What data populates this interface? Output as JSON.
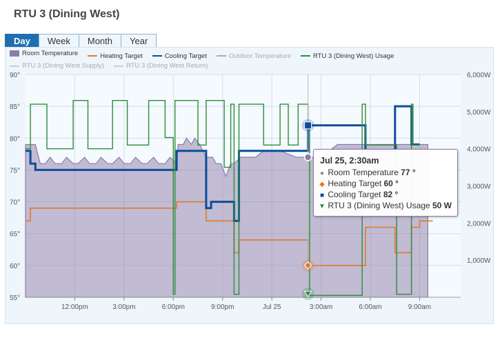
{
  "page": {
    "title": "RTU 3 (Dining West)"
  },
  "tabs": [
    "Day",
    "Week",
    "Month",
    "Year"
  ],
  "active_tab": "Day",
  "legend": [
    {
      "label": "Room Temperature",
      "kind": "area",
      "color": "#8e7ca8",
      "muted": false
    },
    {
      "label": "Heating Target",
      "kind": "line",
      "color": "#e07a2e",
      "muted": false
    },
    {
      "label": "Cooling Target",
      "kind": "line",
      "color": "#0d4c9a",
      "muted": false
    },
    {
      "label": "Outdoor Temperature",
      "kind": "line",
      "color": "#aaaaaa",
      "muted": true
    },
    {
      "label": "RTU 3 (Dining West) Usage",
      "kind": "line",
      "color": "#2e8b3a",
      "muted": false
    },
    {
      "label": "RTU 3 (Dining West Supply)",
      "kind": "line",
      "color": "#cccccc",
      "muted": true
    },
    {
      "label": "RTU 3 (Dining West Return)",
      "kind": "line",
      "color": "#cccccc",
      "muted": true
    }
  ],
  "tooltip": {
    "header": "Jul 25, 2:30am",
    "rows": [
      {
        "marker": "●",
        "color": "#8e7ca8",
        "label": "Room Temperature",
        "value": "77 °"
      },
      {
        "marker": "◆",
        "color": "#e07a2e",
        "label": "Heating Target",
        "value": "60 °"
      },
      {
        "marker": "■",
        "color": "#0d4c9a",
        "label": "Cooling Target",
        "value": "82 °"
      },
      {
        "marker": "▼",
        "color": "#2e8b3a",
        "label": "RTU 3 (Dining West) Usage",
        "value": "50 W"
      }
    ]
  },
  "chart_data": {
    "type": "line",
    "x_unit": "hours since Jul 24 9:00am",
    "x_ticks": [
      {
        "x": 3,
        "label": "12:00pm"
      },
      {
        "x": 6,
        "label": "3:00pm"
      },
      {
        "x": 9,
        "label": "6:00pm"
      },
      {
        "x": 12,
        "label": "9:00pm"
      },
      {
        "x": 15,
        "label": "Jul 25"
      },
      {
        "x": 18,
        "label": "3:00am"
      },
      {
        "x": 21,
        "label": "6:00am"
      },
      {
        "x": 24,
        "label": "9:00am"
      }
    ],
    "xlim": [
      0,
      26.5
    ],
    "y_left": {
      "range": [
        55,
        90
      ],
      "ticks": [
        55,
        60,
        65,
        70,
        75,
        80,
        85,
        90
      ],
      "suffix": "°"
    },
    "y_right": {
      "range": [
        0,
        6000
      ],
      "ticks": [
        0,
        1000,
        2000,
        3000,
        4000,
        5000,
        6000
      ],
      "labels": [
        "",
        "1,000W",
        "2,000W",
        "3,000W",
        "4,000W",
        "5,000W",
        "6,000W"
      ]
    },
    "grid": true,
    "series": [
      {
        "name": "Room Temperature",
        "axis": "left",
        "style": "area",
        "color": "#8e7ca8",
        "x": [
          0,
          0.6,
          0.9,
          1.2,
          1.5,
          1.8,
          2.2,
          2.5,
          2.9,
          3.2,
          3.6,
          3.9,
          4.3,
          4.6,
          5.0,
          5.3,
          5.7,
          6.0,
          6.4,
          6.7,
          7.1,
          7.4,
          7.8,
          8.1,
          8.5,
          8.8,
          9.2,
          9.3,
          9.6,
          9.8,
          10.1,
          10.3,
          10.6,
          11.0,
          11.4,
          11.6,
          11.9,
          12.2,
          12.5,
          12.7,
          13.1,
          13.6,
          14.0,
          14.5,
          15.0,
          15.5,
          16.5,
          17.2,
          17.5,
          18.0,
          19.0,
          20.0,
          20.8,
          21.3,
          21.8,
          22.5,
          23.0,
          23.2,
          23.6,
          24.0,
          24.5
        ],
        "y": [
          79,
          79,
          76,
          76,
          77,
          76,
          76,
          77,
          76,
          76,
          77,
          76,
          76,
          77,
          76,
          76,
          77,
          76,
          76,
          77,
          76,
          76,
          77,
          76,
          76,
          77,
          76,
          79,
          79,
          80,
          79,
          80,
          79,
          77,
          77,
          76,
          76,
          74,
          76,
          76,
          77,
          77,
          77,
          78,
          78,
          78,
          77,
          77,
          77,
          77,
          79,
          79,
          79,
          79,
          79,
          79,
          79,
          79,
          79,
          79,
          79
        ]
      },
      {
        "name": "Heating Target",
        "axis": "left",
        "style": "line",
        "color": "#e07a2e",
        "x": [
          0,
          0.3,
          0.3,
          9.2,
          9.2,
          11.0,
          11.0,
          12.7,
          12.7,
          13.0,
          13.0,
          17.2,
          17.2,
          20.7,
          20.7,
          22.5,
          22.5,
          23.5,
          23.5,
          24.0,
          24.0,
          24.8
        ],
        "y": [
          67,
          67,
          69,
          69,
          70,
          70,
          67,
          67,
          62,
          62,
          64,
          64,
          60,
          60,
          66,
          66,
          62,
          62,
          66,
          66,
          67,
          67
        ]
      },
      {
        "name": "Cooling Target",
        "axis": "left",
        "style": "line",
        "color": "#0d4c9a",
        "x": [
          0,
          0.3,
          0.3,
          0.6,
          0.6,
          9.2,
          9.2,
          11.0,
          11.0,
          11.3,
          11.3,
          12.7,
          12.7,
          13.0,
          13.0,
          17.2,
          17.2,
          20.7,
          20.7,
          22.5,
          22.5,
          23.5,
          23.5,
          24.0
        ],
        "y": [
          78,
          78,
          76,
          76,
          75,
          75,
          78,
          78,
          69,
          69,
          70,
          70,
          67,
          67,
          78,
          78,
          82,
          82,
          78,
          78,
          85,
          85,
          79,
          79
        ]
      },
      {
        "name": "RTU 3 (Dining West) Usage",
        "axis": "right",
        "style": "line",
        "color": "#2e8b3a",
        "x": [
          0,
          0.3,
          0.3,
          1.3,
          1.3,
          2.9,
          2.9,
          3.8,
          3.8,
          5.3,
          5.3,
          6.2,
          6.2,
          7.5,
          7.5,
          8.5,
          8.5,
          9.0,
          9.0,
          9.1,
          9.1,
          10.5,
          10.5,
          11.0,
          11.0,
          12.1,
          12.1,
          12.5,
          12.5,
          12.7,
          12.7,
          13.0,
          13.0,
          14.5,
          14.5,
          15.5,
          15.5,
          16.0,
          16.0,
          16.6,
          16.6,
          17.2,
          17.2,
          17.3,
          17.3,
          20.5,
          20.5,
          20.7,
          20.7,
          22.6,
          22.6,
          23.5,
          23.5,
          23.6,
          23.6,
          24.0
        ],
        "y": [
          4000,
          4000,
          5200,
          5200,
          4000,
          4000,
          5300,
          5300,
          4000,
          4000,
          5300,
          5300,
          4100,
          4100,
          5300,
          5300,
          4300,
          4300,
          80,
          80,
          5300,
          5300,
          4100,
          4100,
          5300,
          5300,
          3500,
          3500,
          5200,
          5200,
          80,
          80,
          5200,
          5200,
          4100,
          4100,
          5200,
          5200,
          4100,
          4100,
          5200,
          5200,
          4700,
          4700,
          50,
          50,
          5200,
          5200,
          4100,
          4100,
          80,
          80,
          5200,
          5200,
          4100,
          4100
        ]
      }
    ],
    "hover": {
      "x": 17.2,
      "room_temp": 77,
      "heating": 60,
      "cooling": 82,
      "usage": 50
    }
  }
}
